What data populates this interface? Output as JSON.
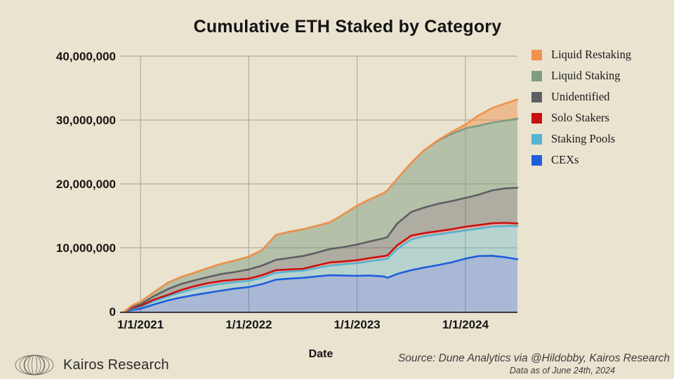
{
  "slide": {
    "title": "Cumulative ETH Staked by Category",
    "brand": "Kairos Research",
    "source_line1": "Source: Dune Analytics via @Hildobby, Kairos Research",
    "source_line2": "Data as of June 24th, 2024",
    "background_color": "#EAE3D0"
  },
  "chart_data": {
    "type": "area",
    "stacked": true,
    "title": "Cumulative ETH Staked by Category",
    "xlabel": "Date",
    "ylabel": "",
    "values_unit": "million ETH",
    "x_unit": "decimal_year",
    "grid": true,
    "legend_position": "right-outside",
    "x": [
      2020.85,
      2020.92,
      2021.0,
      2021.12,
      2021.25,
      2021.37,
      2021.5,
      2021.62,
      2021.75,
      2021.87,
      2022.0,
      2022.12,
      2022.25,
      2022.37,
      2022.5,
      2022.62,
      2022.75,
      2022.87,
      2023.0,
      2023.12,
      2023.25,
      2023.28,
      2023.37,
      2023.5,
      2023.62,
      2023.75,
      2023.87,
      2024.0,
      2024.12,
      2024.25,
      2024.37,
      2024.48
    ],
    "x_ticks": [
      {
        "value": 2021.0,
        "label": "1/1/2021"
      },
      {
        "value": 2022.0,
        "label": "1/1/2022"
      },
      {
        "value": 2023.0,
        "label": "1/1/2023"
      },
      {
        "value": 2024.0,
        "label": "1/1/2024"
      }
    ],
    "y_ticks": [
      {
        "value": 0,
        "label": "0"
      },
      {
        "value": 10,
        "label": "10,000,000"
      },
      {
        "value": 20,
        "label": "20,000,000"
      },
      {
        "value": 30,
        "label": "30,000,000"
      },
      {
        "value": 40,
        "label": "40,000,000"
      }
    ],
    "y_max": 40,
    "series_note": "values are per-category amounts in millions of ETH, stacked bottom-to-top",
    "series": [
      {
        "name": "CEXs",
        "color": "#1E5EDC",
        "fill_alpha": 0.32,
        "values": [
          0,
          0.25,
          0.45,
          1.1,
          1.75,
          2.2,
          2.6,
          2.95,
          3.3,
          3.6,
          3.85,
          4.3,
          5.0,
          5.15,
          5.3,
          5.5,
          5.7,
          5.65,
          5.6,
          5.65,
          5.5,
          5.3,
          5.9,
          6.5,
          6.9,
          7.3,
          7.7,
          8.3,
          8.7,
          8.75,
          8.5,
          8.2
        ]
      },
      {
        "name": "Staking Pools",
        "color": "#55B4D2",
        "fill_alpha": 0.35,
        "values": [
          0,
          0.2,
          0.3,
          0.5,
          0.6,
          0.8,
          1.0,
          1.05,
          1.05,
          1.0,
          0.95,
          1.0,
          1.1,
          1.1,
          1.1,
          1.3,
          1.5,
          1.75,
          2.0,
          2.25,
          2.7,
          3.0,
          3.9,
          4.8,
          4.9,
          4.8,
          4.7,
          4.4,
          4.3,
          4.55,
          4.9,
          5.2
        ]
      },
      {
        "name": "Solo Stakers",
        "color": "#C90F0F",
        "fill_alpha": 0.28,
        "values": [
          0,
          0.1,
          0.15,
          0.25,
          0.25,
          0.35,
          0.4,
          0.45,
          0.45,
          0.4,
          0.35,
          0.4,
          0.4,
          0.35,
          0.3,
          0.4,
          0.5,
          0.45,
          0.45,
          0.5,
          0.5,
          0.5,
          0.6,
          0.6,
          0.5,
          0.5,
          0.5,
          0.6,
          0.55,
          0.55,
          0.5,
          0.4
        ]
      },
      {
        "name": "Unidentified",
        "color": "#5D5F62",
        "fill_alpha": 0.42,
        "values": [
          0,
          0.15,
          0.25,
          0.55,
          0.9,
          0.95,
          0.9,
          0.95,
          1.1,
          1.2,
          1.45,
          1.5,
          1.6,
          1.8,
          2.0,
          2.0,
          2.1,
          2.25,
          2.45,
          2.6,
          2.8,
          2.9,
          3.4,
          3.7,
          4.0,
          4.3,
          4.4,
          4.5,
          4.75,
          5.15,
          5.4,
          5.6
        ]
      },
      {
        "name": "Liquid Staking",
        "color": "#7E9D80",
        "fill_alpha": 0.5,
        "values": [
          0,
          0.25,
          0.4,
          0.6,
          1.0,
          1.1,
          1.2,
          1.4,
          1.6,
          1.8,
          2.0,
          2.4,
          3.9,
          4.1,
          4.2,
          4.2,
          4.2,
          5.1,
          6.1,
          6.6,
          7.1,
          7.3,
          7.0,
          7.7,
          9.0,
          9.9,
          10.5,
          10.9,
          10.8,
          10.6,
          10.6,
          10.8
        ]
      },
      {
        "name": "Liquid Restaking",
        "color": "#F0914C",
        "fill_alpha": 0.48,
        "values": [
          0,
          0,
          0,
          0,
          0,
          0,
          0,
          0,
          0,
          0,
          0,
          0,
          0,
          0,
          0,
          0,
          0,
          0,
          0,
          0,
          0,
          0,
          0,
          0,
          0,
          0.1,
          0.3,
          0.6,
          1.6,
          2.3,
          2.7,
          3.0
        ]
      }
    ],
    "legend_order_top_down": [
      "Liquid Restaking",
      "Liquid Staking",
      "Unidentified",
      "Solo Stakers",
      "Staking Pools",
      "CEXs"
    ]
  }
}
